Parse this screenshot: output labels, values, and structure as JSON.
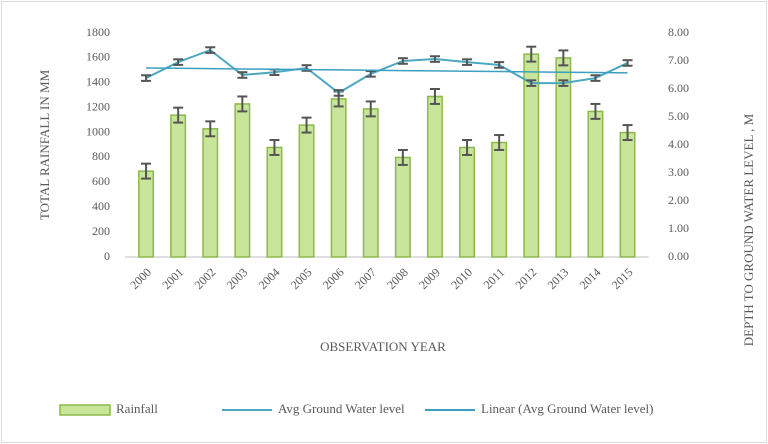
{
  "chart_data": {
    "type": "bar-line",
    "x_label": "OBSERVATION YEAR",
    "y_label": "TOTAL  RAINFALL   IN MM",
    "y2_label": "DEPTH TO GROUND WATER LEVEL , M",
    "categories": [
      "2000",
      "2001",
      "2002",
      "2003",
      "2004",
      "2005",
      "2006",
      "2007",
      "2008",
      "2009",
      "2010",
      "2011",
      "2012",
      "2013",
      "2014",
      "2015"
    ],
    "series": [
      {
        "name": "Rainfall",
        "type": "bar",
        "color": "#c9e59a",
        "edge_color": "#8db84a",
        "values": [
          690,
          1140,
          1030,
          1230,
          880,
          1060,
          1270,
          1190,
          800,
          1290,
          880,
          920,
          1630,
          1600,
          1170,
          1000
        ],
        "errors": [
          60,
          60,
          60,
          60,
          60,
          60,
          60,
          60,
          60,
          60,
          60,
          60,
          60,
          60,
          60,
          60
        ]
      },
      {
        "name": "Avg Ground Water level",
        "type": "line",
        "axis": "y2",
        "color": "#4aa8c0",
        "values": [
          6.39,
          6.96,
          7.39,
          6.5,
          6.6,
          6.75,
          5.86,
          6.54,
          7.0,
          7.07,
          6.96,
          6.86,
          6.21,
          6.21,
          6.39,
          6.93
        ],
        "errors": [
          0.1,
          0.1,
          0.1,
          0.1,
          0.1,
          0.1,
          0.1,
          0.1,
          0.1,
          0.1,
          0.1,
          0.1,
          0.1,
          0.1,
          0.1,
          0.1
        ]
      },
      {
        "name": "Linear (Avg Ground Water level)",
        "type": "trend",
        "trend": "linear",
        "of_series": 1,
        "axis": "y2",
        "color": "#3d9fbf"
      }
    ],
    "ylim": [
      0,
      1800
    ],
    "yticks": [
      0,
      200,
      400,
      600,
      800,
      1000,
      1200,
      1400,
      1600,
      1800
    ],
    "y2lim": [
      0,
      8
    ],
    "y2ticks": [
      {
        "value": 0,
        "label": "0.00"
      },
      {
        "value": 1,
        "label": "1.00"
      },
      {
        "value": 2,
        "label": "2.00"
      },
      {
        "value": 3,
        "label": "3.00"
      },
      {
        "value": 4,
        "label": "4.00"
      },
      {
        "value": 5,
        "label": "5.00"
      },
      {
        "value": 6,
        "label": "6.00"
      },
      {
        "value": 7,
        "label": "7.00"
      },
      {
        "value": 8,
        "label": "8.00"
      }
    ],
    "error_color": "#555555",
    "legend": "bottom"
  }
}
